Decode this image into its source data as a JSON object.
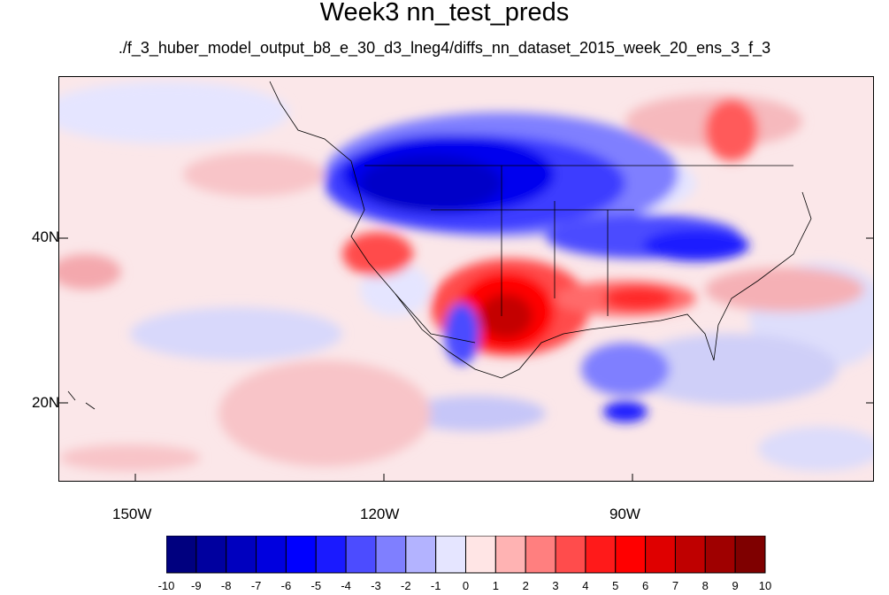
{
  "title": "Week3 nn_test_preds",
  "subtitle": "./f_3_huber_model_output_b8_e_30_d3_lneg4/diffs_nn_dataset_2015_week_20_ens_3_f_3",
  "map": {
    "lat_ticks": [
      "40N",
      "20N"
    ],
    "lon_ticks": [
      "150W",
      "120W",
      "90W"
    ]
  },
  "colorbar": {
    "labels": [
      "-10",
      "-9",
      "-8",
      "-7",
      "-6",
      "-5",
      "-4",
      "-3",
      "-2",
      "-1",
      "0",
      "1",
      "2",
      "3",
      "4",
      "5",
      "6",
      "7",
      "8",
      "9",
      "10"
    ],
    "colors": [
      "#00007f",
      "#00009f",
      "#0000bf",
      "#0000df",
      "#0000ff",
      "#1a1aff",
      "#4c4cff",
      "#7f7fff",
      "#b3b3ff",
      "#e5e5ff",
      "#ffe5e5",
      "#ffb3b3",
      "#ff7f7f",
      "#ff4c4c",
      "#ff1a1a",
      "#ff0000",
      "#df0000",
      "#bf0000",
      "#9f0000",
      "#7f0000"
    ]
  }
}
